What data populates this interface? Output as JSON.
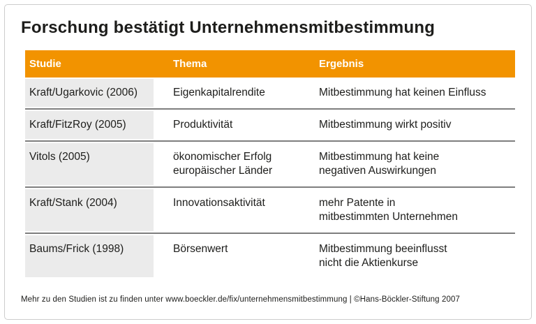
{
  "page": {
    "title": "Forschung bestätigt Unternehmensmitbestimmung",
    "source_line": "Mehr zu den Studien ist zu finden unter www.boeckler.de/fix/unternehmensmitbestimmung | ©Hans-Böckler-Stiftung 2007"
  },
  "colors": {
    "accent_orange": "#F29300",
    "row_label_bg": "#EBEBEB",
    "divider_gray": "#7E7E7E",
    "frame_border": "#CDCDCD",
    "text": "#1D1D1B"
  },
  "chart_data": {
    "type": "table",
    "title": "Forschung bestätigt Unternehmensmitbestimmung",
    "columns": {
      "studie": "Studie",
      "thema": "Thema",
      "ergebnis": "Ergebnis"
    },
    "rows": [
      {
        "studie": "Kraft/Ugarkovic (2006)",
        "thema": "Eigenkapitalrendite",
        "ergebnis": "Mitbestimmung hat keinen Einfluss"
      },
      {
        "studie": "Kraft/FitzRoy (2005)",
        "thema": "Produktivität",
        "ergebnis": "Mitbestimmung wirkt positiv"
      },
      {
        "studie": "Vitols (2005)",
        "thema": "ökonomischer Erfolg\neuropäischer Länder",
        "ergebnis": "Mitbestimmung hat keine\nnegativen Auswirkungen"
      },
      {
        "studie": "Kraft/Stank (2004)",
        "thema": "Innovationsaktivität",
        "ergebnis": "mehr Patente in\nmitbestimmten Unternehmen"
      },
      {
        "studie": "Baums/Frick (1998)",
        "thema": "Börsenwert",
        "ergebnis": "Mitbestimmung beeinflusst\nnicht die Aktienkurse"
      }
    ],
    "source": "Mehr zu den Studien ist zu finden unter www.boeckler.de/fix/unternehmensmitbestimmung | ©Hans-Böckler-Stiftung 2007"
  }
}
